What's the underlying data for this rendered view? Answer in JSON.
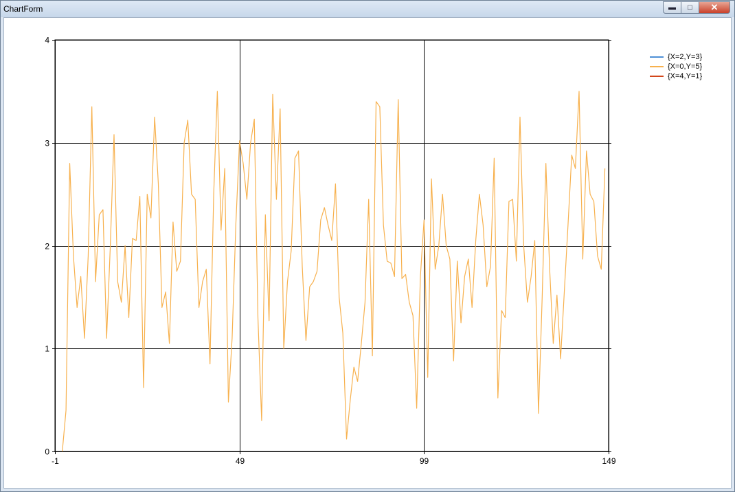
{
  "window": {
    "title": "ChartForm"
  },
  "colors": {
    "series0": "#4d8fd6",
    "series1": "#f7b14e",
    "series2": "#d2461a",
    "grid": "#000000"
  },
  "chart_data": {
    "type": "line",
    "xlim": [
      -1,
      149
    ],
    "ylim": [
      0,
      4
    ],
    "x_ticks": [
      "-1",
      "49",
      "99",
      "149"
    ],
    "y_ticks": [
      "4",
      "3",
      "2",
      "1",
      "0"
    ],
    "grid": true,
    "legend_position": "top-right",
    "series": [
      {
        "name": "{X=2,Y=3}",
        "color": "#4d8fd6",
        "values": []
      },
      {
        "name": "{X=0,Y=5}",
        "color": "#f7b14e",
        "x_start": 1,
        "x_step": 1,
        "values": [
          0,
          0.4,
          2.8,
          1.9,
          1.4,
          1.7,
          1.1,
          1.9,
          3.35,
          1.65,
          2.3,
          2.35,
          1.1,
          2.0,
          3.08,
          1.65,
          1.45,
          2.0,
          1.3,
          2.07,
          2.05,
          2.48,
          0.62,
          2.5,
          2.27,
          3.25,
          2.6,
          1.4,
          1.55,
          1.05,
          2.23,
          1.75,
          1.85,
          3.0,
          3.22,
          2.5,
          2.45,
          1.4,
          1.65,
          1.77,
          0.85,
          2.5,
          3.5,
          2.15,
          2.75,
          0.48,
          1.1,
          2.2,
          3.02,
          2.8,
          2.45,
          3.0,
          3.23,
          1.3,
          0.3,
          2.3,
          1.27,
          3.47,
          2.45,
          3.33,
          1.0,
          1.65,
          1.95,
          2.85,
          2.92,
          1.8,
          1.08,
          1.6,
          1.65,
          1.75,
          2.25,
          2.37,
          2.2,
          2.05,
          2.6,
          1.5,
          1.15,
          0.12,
          0.5,
          0.82,
          0.68,
          1.05,
          1.45,
          2.45,
          0.93,
          3.4,
          3.35,
          2.2,
          1.85,
          1.83,
          1.7,
          3.42,
          1.68,
          1.72,
          1.45,
          1.32,
          0.42,
          1.7,
          2.25,
          0.72,
          2.65,
          1.77,
          2.0,
          2.5,
          2.0,
          1.87,
          0.88,
          1.85,
          1.25,
          1.7,
          1.87,
          1.4,
          2.05,
          2.5,
          2.2,
          1.6,
          1.8,
          2.85,
          0.52,
          1.37,
          1.3,
          2.43,
          2.45,
          1.85,
          3.25,
          2.0,
          1.45,
          1.7,
          2.05,
          0.37,
          1.5,
          2.8,
          1.8,
          1.05,
          1.52,
          0.9,
          1.55,
          2.2,
          2.88,
          2.75,
          3.5,
          1.87,
          2.92,
          2.5,
          2.43,
          1.9,
          1.77,
          2.75
        ]
      },
      {
        "name": "{X=4,Y=1}",
        "color": "#d2461a",
        "values": []
      }
    ]
  }
}
